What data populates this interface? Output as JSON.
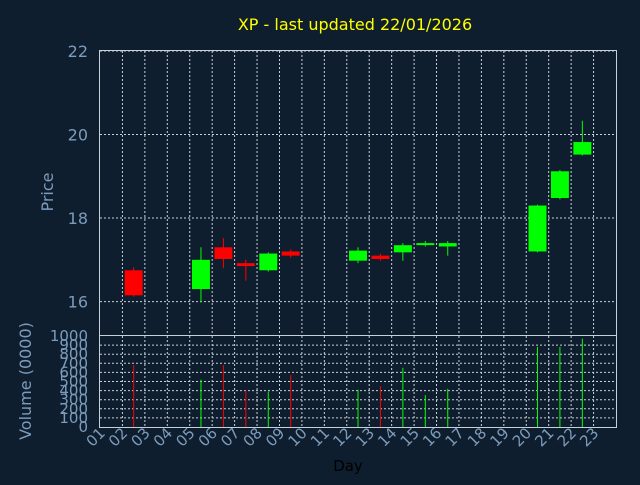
{
  "chart_data": {
    "type": "candlestick",
    "title": "XP - last updated 22/01/2026",
    "x_label": "Day",
    "price_label": "Price",
    "volume_label": "Volume (0000)",
    "x_ticks": [
      "01",
      "02",
      "03",
      "04",
      "05",
      "06",
      "07",
      "08",
      "09",
      "10",
      "11",
      "12",
      "13",
      "14",
      "15",
      "16",
      "17",
      "18",
      "19",
      "20",
      "21",
      "22",
      "23"
    ],
    "price_ticks": [
      16,
      18,
      20,
      22
    ],
    "price_range": [
      15.2,
      22
    ],
    "volume_ticks": [
      0,
      100,
      200,
      300,
      400,
      500,
      600,
      700,
      800,
      900,
      1000
    ],
    "volume_range": [
      0,
      1000
    ],
    "grid": true,
    "colors": {
      "up": "#00ff00",
      "down": "#ff0000"
    },
    "candles": [
      {
        "day": "02",
        "open": 16.75,
        "high": 16.82,
        "low": 16.12,
        "close": 16.15,
        "volume": 680
      },
      {
        "day": "05",
        "open": 16.3,
        "high": 17.3,
        "low": 15.98,
        "close": 17.0,
        "volume": 520
      },
      {
        "day": "06",
        "open": 17.3,
        "high": 17.52,
        "low": 16.8,
        "close": 17.02,
        "volume": 680
      },
      {
        "day": "07",
        "open": 16.92,
        "high": 17.0,
        "low": 16.5,
        "close": 16.85,
        "volume": 400
      },
      {
        "day": "08",
        "open": 16.75,
        "high": 17.18,
        "low": 16.72,
        "close": 17.15,
        "volume": 390
      },
      {
        "day": "09",
        "open": 17.2,
        "high": 17.25,
        "low": 17.05,
        "close": 17.1,
        "volume": 570
      },
      {
        "day": "12",
        "open": 16.98,
        "high": 17.3,
        "low": 16.92,
        "close": 17.22,
        "volume": 410
      },
      {
        "day": "13",
        "open": 17.1,
        "high": 17.15,
        "low": 16.98,
        "close": 17.02,
        "volume": 450
      },
      {
        "day": "14",
        "open": 17.18,
        "high": 17.4,
        "low": 16.98,
        "close": 17.35,
        "volume": 650
      },
      {
        "day": "15",
        "open": 17.38,
        "high": 17.45,
        "low": 17.32,
        "close": 17.4,
        "volume": 350
      },
      {
        "day": "16",
        "open": 17.32,
        "high": 17.45,
        "low": 17.1,
        "close": 17.4,
        "volume": 420
      },
      {
        "day": "20",
        "open": 17.2,
        "high": 18.32,
        "low": 17.18,
        "close": 18.3,
        "volume": 880
      },
      {
        "day": "21",
        "open": 18.48,
        "high": 19.15,
        "low": 18.45,
        "close": 19.12,
        "volume": 880
      },
      {
        "day": "22",
        "open": 19.52,
        "high": 20.33,
        "low": 19.5,
        "close": 19.82,
        "volume": 970
      }
    ]
  }
}
